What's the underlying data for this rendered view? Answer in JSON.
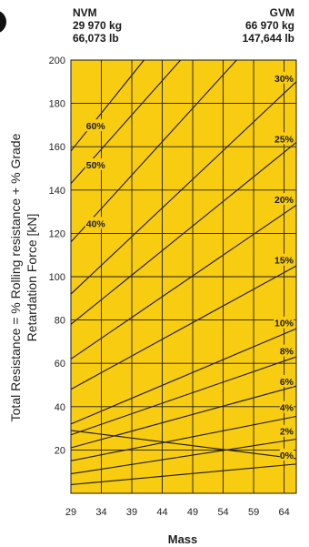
{
  "colors": {
    "plot_fill": "#f8cc10",
    "grid": "#1a1a1a",
    "line": "#1a1a1a",
    "text": "#1a1a1a"
  },
  "header": {
    "nvm": {
      "title": "NVM",
      "kg": "29 970 kg",
      "lb": "66,073 lb"
    },
    "gvm": {
      "title": "GVM",
      "kg": "66 970 kg",
      "lb": "147,644 lb"
    }
  },
  "chart_data": {
    "type": "line",
    "xlabel": "Mass",
    "ylabel": [
      "Total Resistance = % Rolling resistance + % Grade",
      "Retardation Force [kN]"
    ],
    "xlim": [
      29,
      66
    ],
    "ylim": [
      0,
      200
    ],
    "x_ticks": [
      29,
      34,
      39,
      44,
      49,
      54,
      59,
      64
    ],
    "y_ticks": [
      20,
      40,
      60,
      80,
      100,
      120,
      140,
      160,
      180,
      200
    ],
    "grid": true,
    "series": [
      {
        "label": "0%",
        "x": [
          29,
          66
        ],
        "y": [
          4,
          13.5
        ]
      },
      {
        "label": "2%",
        "x": [
          29,
          66
        ],
        "y": [
          9,
          25
        ]
      },
      {
        "label": "4%",
        "x": [
          29,
          66
        ],
        "y": [
          15,
          35.5
        ]
      },
      {
        "label": "6%",
        "x": [
          29,
          66
        ],
        "y": [
          21,
          49.5
        ]
      },
      {
        "label": "8%",
        "x": [
          29,
          66
        ],
        "y": [
          27,
          63
        ]
      },
      {
        "label": "10%",
        "x": [
          29,
          66
        ],
        "y": [
          32,
          76
        ]
      },
      {
        "label": "",
        "x": [
          29,
          66
        ],
        "y": [
          29,
          16
        ]
      },
      {
        "label": "15%",
        "x": [
          29,
          66
        ],
        "y": [
          48,
          105
        ]
      },
      {
        "label": "20%",
        "x": [
          29,
          66
        ],
        "y": [
          62,
          133
        ]
      },
      {
        "label": "25%",
        "x": [
          29,
          66
        ],
        "y": [
          78,
          162
        ]
      },
      {
        "label": "30%",
        "x": [
          29,
          66
        ],
        "y": [
          92,
          190
        ]
      },
      {
        "label": "40%",
        "x": [
          29,
          56.2
        ],
        "y": [
          116,
          200
        ]
      },
      {
        "label": "50%",
        "x": [
          29,
          47
        ],
        "y": [
          143,
          200
        ]
      },
      {
        "label": "60%",
        "x": [
          29,
          41
        ],
        "y": [
          158,
          200
        ]
      }
    ],
    "annotations": [
      {
        "text": "0%",
        "x": 63.5,
        "y": 16
      },
      {
        "text": "2%",
        "x": 63.5,
        "y": 27
      },
      {
        "text": "4%",
        "x": 63.5,
        "y": 38
      },
      {
        "text": "6%",
        "x": 63.5,
        "y": 50
      },
      {
        "text": "8%",
        "x": 63.5,
        "y": 64
      },
      {
        "text": "10%",
        "x": 63.5,
        "y": 77
      },
      {
        "text": "15%",
        "x": 63.5,
        "y": 106
      },
      {
        "text": "20%",
        "x": 63.5,
        "y": 134
      },
      {
        "text": "25%",
        "x": 63.5,
        "y": 162
      },
      {
        "text": "30%",
        "x": 63.5,
        "y": 190
      },
      {
        "text": "40%",
        "x": 31.5,
        "y": 123
      },
      {
        "text": "50%",
        "x": 31.5,
        "y": 150
      },
      {
        "text": "60%",
        "x": 31.5,
        "y": 168
      }
    ]
  }
}
